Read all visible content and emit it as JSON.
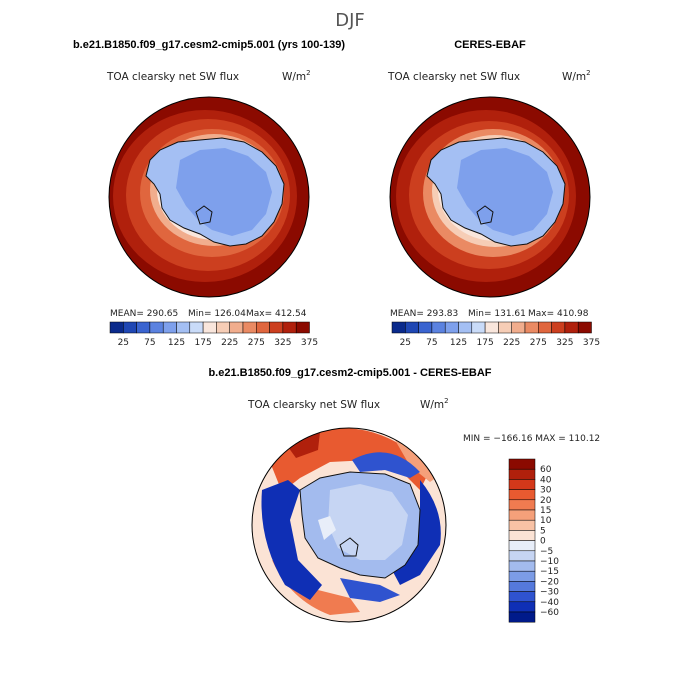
{
  "page_title": "DJF",
  "panels": [
    {
      "title": "b.e21.B1850.f09_g17.cesm2-cmip5.001 (yrs 100-139)",
      "variable": "TOA clearsky net SW flux",
      "units": "W/m",
      "units_sup": "2",
      "stats": {
        "mean": "MEAN= 290.65",
        "min": "Min= 126.04",
        "max": "Max= 412.54"
      }
    },
    {
      "title": "CERES-EBAF",
      "variable": "TOA clearsky net SW flux",
      "units": "W/m",
      "units_sup": "2",
      "stats": {
        "mean": "MEAN= 293.83",
        "min": "Min= 131.61",
        "max": "Max= 410.98"
      }
    },
    {
      "title": "b.e21.B1850.f09_g17.cesm2-cmip5.001 - CERES-EBAF",
      "variable": "TOA clearsky net SW flux",
      "units": "W/m",
      "units_sup": "2",
      "stats": {
        "range": "MIN = −166.16 MAX = 110.12"
      }
    }
  ],
  "chart_data": [
    {
      "type": "heatmap",
      "projection": "south-polar-stereographic",
      "title": "b.e21.B1850.f09_g17.cesm2-cmip5.001 (yrs 100-139)",
      "colorbar_ticks": [
        "25",
        "75",
        "125",
        "175",
        "225",
        "275",
        "325",
        "375"
      ],
      "colorbar_colors": [
        "#0a2a8c",
        "#1f47b4",
        "#3a64d0",
        "#5b82e0",
        "#7ea0ec",
        "#a4bff3",
        "#c9dbf8",
        "#f9e6dc",
        "#f6cdb6",
        "#f1ad8d",
        "#ea8a63",
        "#e0663e",
        "#cc3f1f",
        "#b0200c",
        "#8b0a00"
      ],
      "colorbar_orientation": "horizontal",
      "stats": {
        "mean": 290.65,
        "min": 126.04,
        "max": 412.54
      }
    },
    {
      "type": "heatmap",
      "projection": "south-polar-stereographic",
      "title": "CERES-EBAF",
      "colorbar_ticks": [
        "25",
        "75",
        "125",
        "175",
        "225",
        "275",
        "325",
        "375"
      ],
      "colorbar_colors": [
        "#0a2a8c",
        "#1f47b4",
        "#3a64d0",
        "#5b82e0",
        "#7ea0ec",
        "#a4bff3",
        "#c9dbf8",
        "#f9e6dc",
        "#f6cdb6",
        "#f1ad8d",
        "#ea8a63",
        "#e0663e",
        "#cc3f1f",
        "#b0200c",
        "#8b0a00"
      ],
      "colorbar_orientation": "horizontal",
      "stats": {
        "mean": 293.83,
        "min": 131.61,
        "max": 410.98
      }
    },
    {
      "type": "heatmap",
      "projection": "south-polar-stereographic",
      "title": "b.e21.B1850.f09_g17.cesm2-cmip5.001 - CERES-EBAF",
      "colorbar_ticks": [
        "60",
        "40",
        "30",
        "20",
        "15",
        "10",
        "5",
        "0",
        "−5",
        "−10",
        "−15",
        "−20",
        "−30",
        "−40",
        "−60"
      ],
      "colorbar_colors": [
        "#8b0a00",
        "#b0200c",
        "#d4381a",
        "#e85a30",
        "#f07b50",
        "#f5a07a",
        "#f8c2a5",
        "#fbe3d5",
        "#e8eef9",
        "#c6d5f3",
        "#a3bbee",
        "#7c9ce6",
        "#5579dc",
        "#2f53cf",
        "#0f2fb5",
        "#001a8a"
      ],
      "colorbar_orientation": "vertical",
      "stats": {
        "min": -166.16,
        "max": 110.12
      }
    }
  ]
}
